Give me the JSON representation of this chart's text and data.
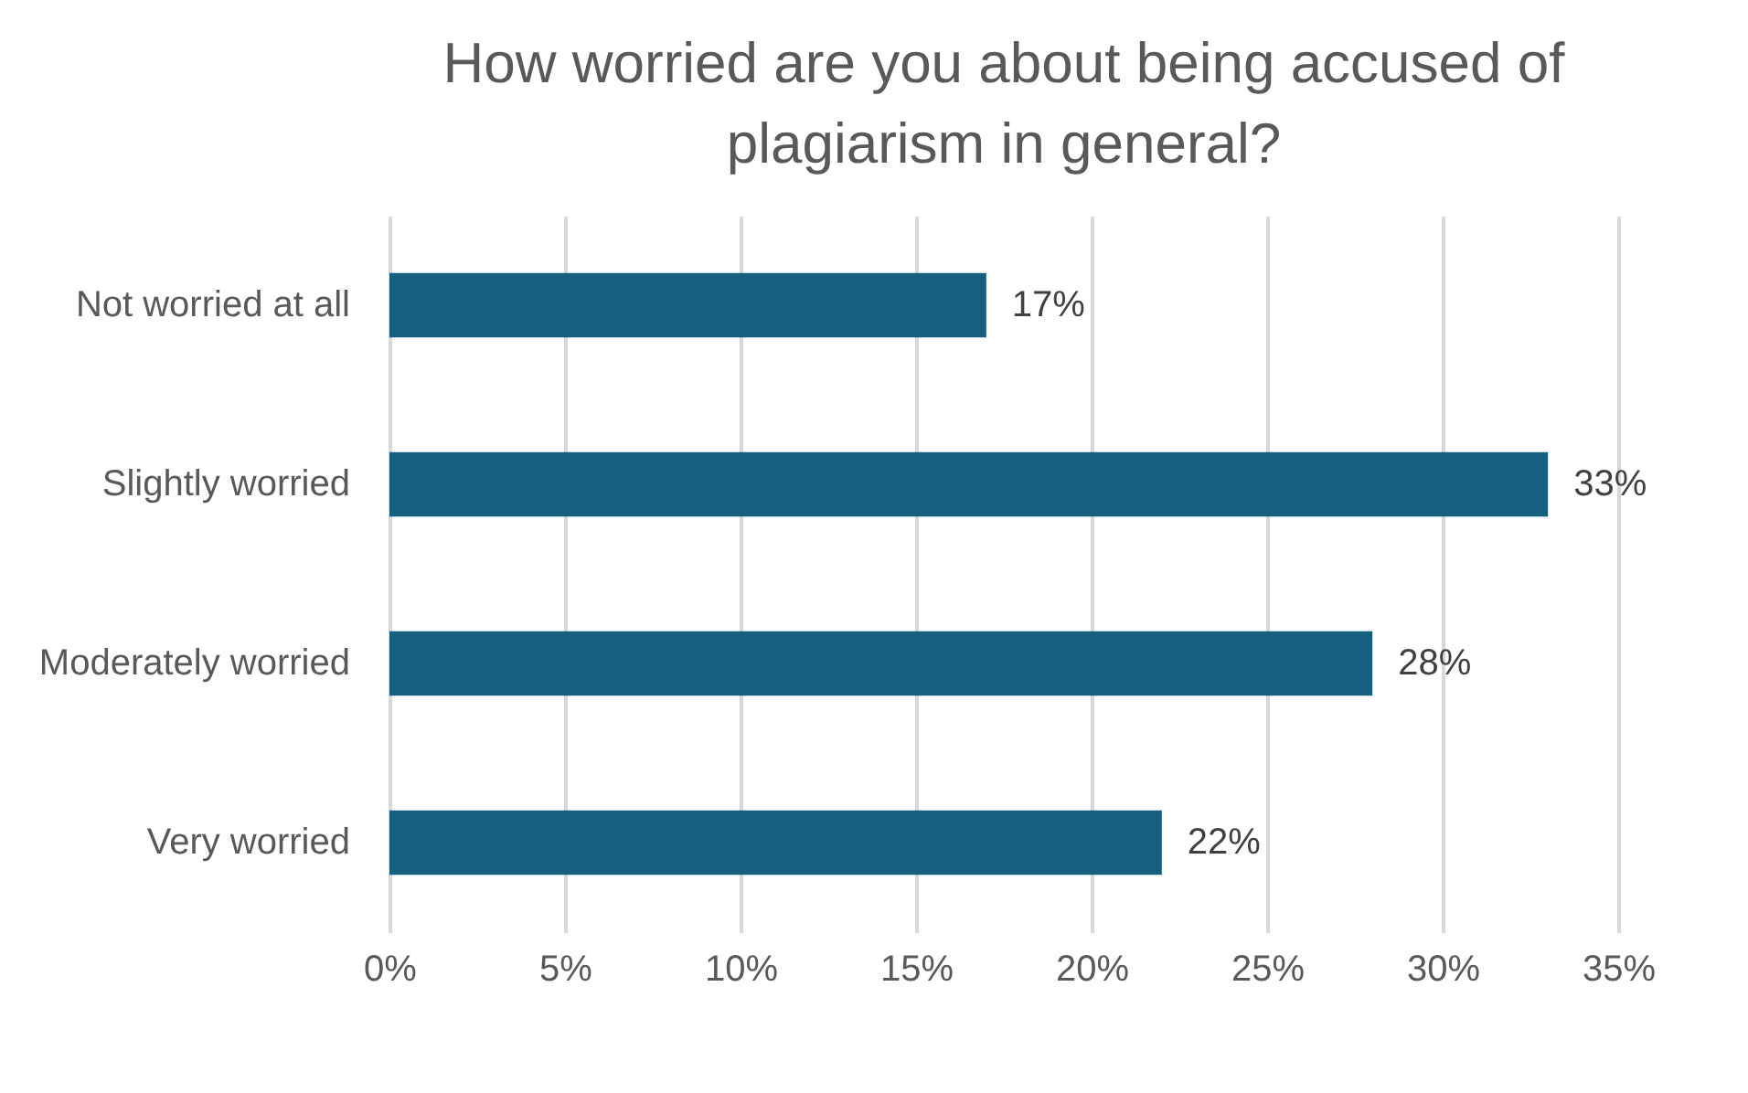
{
  "chart_data": {
    "type": "bar",
    "orientation": "horizontal",
    "title": "How worried are you about being accused of plagiarism in general?",
    "categories": [
      "Not worried at all",
      "Slightly worried",
      "Moderately worried",
      "Very worried"
    ],
    "values": [
      17,
      33,
      28,
      22
    ],
    "value_labels": [
      "17%",
      "33%",
      "28%",
      "22%"
    ],
    "color": "#175f80",
    "xlim": [
      0,
      35
    ],
    "xticks": [
      {
        "value": 0,
        "label": "0%"
      },
      {
        "value": 5,
        "label": "5%"
      },
      {
        "value": 10,
        "label": "10%"
      },
      {
        "value": 15,
        "label": "15%"
      },
      {
        "value": 20,
        "label": "20%"
      },
      {
        "value": 25,
        "label": "25%"
      },
      {
        "value": 30,
        "label": "30%"
      },
      {
        "value": 35,
        "label": "35%"
      }
    ],
    "grid": "x"
  }
}
